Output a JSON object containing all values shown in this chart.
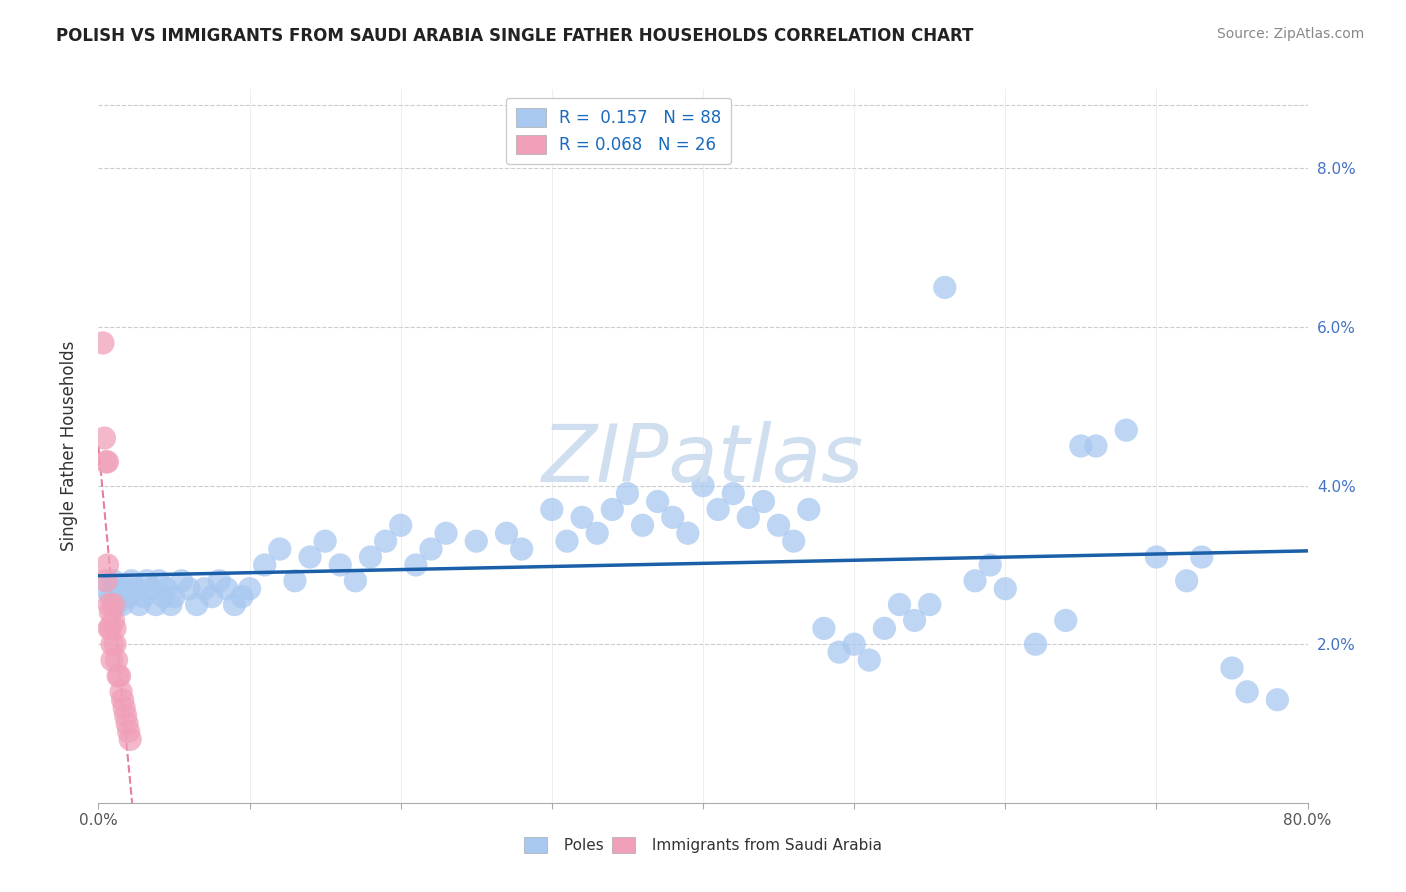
{
  "title": "POLISH VS IMMIGRANTS FROM SAUDI ARABIA SINGLE FATHER HOUSEHOLDS CORRELATION CHART",
  "source": "Source: ZipAtlas.com",
  "ylabel": "Single Father Households",
  "x_min": 0.0,
  "x_max": 0.8,
  "y_min": 0.0,
  "y_max": 0.09,
  "x_ticks_minor": [
    0.0,
    0.1,
    0.2,
    0.3,
    0.4,
    0.5,
    0.6,
    0.7,
    0.8
  ],
  "x_tick_labels_shown": {
    "0.0": "0.0%",
    "0.8": "80.0%"
  },
  "y_ticks": [
    0.02,
    0.04,
    0.06,
    0.08
  ],
  "y_tick_labels": [
    "2.0%",
    "4.0%",
    "6.0%",
    "8.0%"
  ],
  "R_blue": 0.157,
  "N_blue": 88,
  "R_pink": 0.068,
  "N_pink": 26,
  "blue_color": "#a8c8f0",
  "blue_line_color": "#1a5fa8",
  "pink_color": "#f0a0b8",
  "pink_line_color": "#e06080",
  "watermark": "ZIPatlas",
  "watermark_color": "#d0dff0",
  "blue_scatter_x": [
    0.005,
    0.008,
    0.01,
    0.012,
    0.013,
    0.015,
    0.016,
    0.018,
    0.02,
    0.022,
    0.025,
    0.027,
    0.03,
    0.032,
    0.035,
    0.038,
    0.04,
    0.043,
    0.045,
    0.048,
    0.05,
    0.055,
    0.06,
    0.065,
    0.07,
    0.075,
    0.08,
    0.085,
    0.09,
    0.095,
    0.1,
    0.11,
    0.12,
    0.13,
    0.14,
    0.15,
    0.16,
    0.17,
    0.18,
    0.19,
    0.2,
    0.21,
    0.22,
    0.23,
    0.25,
    0.27,
    0.28,
    0.3,
    0.31,
    0.32,
    0.33,
    0.34,
    0.35,
    0.36,
    0.37,
    0.38,
    0.39,
    0.4,
    0.41,
    0.42,
    0.43,
    0.44,
    0.45,
    0.46,
    0.47,
    0.48,
    0.49,
    0.5,
    0.51,
    0.52,
    0.53,
    0.54,
    0.55,
    0.56,
    0.58,
    0.59,
    0.6,
    0.62,
    0.64,
    0.65,
    0.66,
    0.68,
    0.7,
    0.72,
    0.73,
    0.75,
    0.76,
    0.78
  ],
  "blue_scatter_y": [
    0.027,
    0.026,
    0.028,
    0.025,
    0.027,
    0.026,
    0.025,
    0.027,
    0.026,
    0.028,
    0.027,
    0.025,
    0.026,
    0.028,
    0.027,
    0.025,
    0.028,
    0.026,
    0.027,
    0.025,
    0.026,
    0.028,
    0.027,
    0.025,
    0.027,
    0.026,
    0.028,
    0.027,
    0.025,
    0.026,
    0.027,
    0.03,
    0.032,
    0.028,
    0.031,
    0.033,
    0.03,
    0.028,
    0.031,
    0.033,
    0.035,
    0.03,
    0.032,
    0.034,
    0.033,
    0.034,
    0.032,
    0.037,
    0.033,
    0.036,
    0.034,
    0.037,
    0.039,
    0.035,
    0.038,
    0.036,
    0.034,
    0.04,
    0.037,
    0.039,
    0.036,
    0.038,
    0.035,
    0.033,
    0.037,
    0.022,
    0.019,
    0.02,
    0.018,
    0.022,
    0.025,
    0.023,
    0.025,
    0.065,
    0.028,
    0.03,
    0.027,
    0.02,
    0.023,
    0.045,
    0.045,
    0.047,
    0.031,
    0.028,
    0.031,
    0.017,
    0.014,
    0.013
  ],
  "pink_scatter_x": [
    0.003,
    0.004,
    0.005,
    0.005,
    0.006,
    0.006,
    0.007,
    0.007,
    0.008,
    0.008,
    0.009,
    0.009,
    0.01,
    0.01,
    0.011,
    0.011,
    0.012,
    0.013,
    0.014,
    0.015,
    0.016,
    0.017,
    0.018,
    0.019,
    0.02,
    0.021
  ],
  "pink_scatter_y": [
    0.058,
    0.046,
    0.043,
    0.028,
    0.043,
    0.03,
    0.025,
    0.022,
    0.024,
    0.022,
    0.02,
    0.018,
    0.025,
    0.023,
    0.022,
    0.02,
    0.018,
    0.016,
    0.016,
    0.014,
    0.013,
    0.012,
    0.011,
    0.01,
    0.009,
    0.008
  ]
}
